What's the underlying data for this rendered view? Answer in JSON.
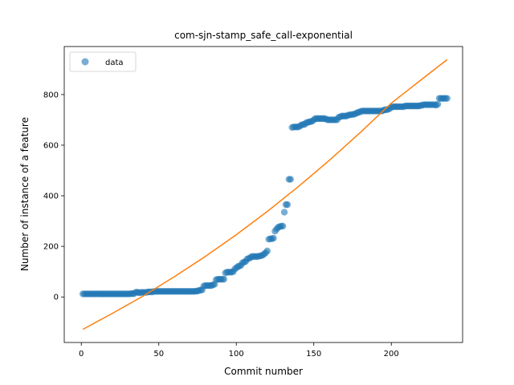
{
  "chart_data": {
    "type": "scatter",
    "title": "com-sjn-stamp_safe_call-exponential",
    "xlabel": "Commit number",
    "ylabel": "Number of instance of a feature",
    "xlim": [
      -11,
      246
    ],
    "ylim": [
      -180,
      990
    ],
    "xticks": [
      0,
      50,
      100,
      150,
      200
    ],
    "yticks": [
      0,
      200,
      400,
      600,
      800
    ],
    "grid": false,
    "legend_position": "top-left",
    "series": [
      {
        "name": "data",
        "kind": "points",
        "color": "#1f77b4",
        "points": [
          [
            1,
            12
          ],
          [
            2,
            12
          ],
          [
            3,
            12
          ],
          [
            4,
            12
          ],
          [
            5,
            12
          ],
          [
            6,
            12
          ],
          [
            7,
            12
          ],
          [
            8,
            12
          ],
          [
            9,
            12
          ],
          [
            10,
            12
          ],
          [
            11,
            12
          ],
          [
            12,
            12
          ],
          [
            13,
            12
          ],
          [
            14,
            12
          ],
          [
            15,
            12
          ],
          [
            16,
            12
          ],
          [
            17,
            12
          ],
          [
            18,
            12
          ],
          [
            19,
            12
          ],
          [
            20,
            12
          ],
          [
            21,
            12
          ],
          [
            22,
            12
          ],
          [
            23,
            12
          ],
          [
            24,
            12
          ],
          [
            25,
            12
          ],
          [
            26,
            12
          ],
          [
            27,
            12
          ],
          [
            28,
            12
          ],
          [
            29,
            12
          ],
          [
            30,
            12
          ],
          [
            31,
            12
          ],
          [
            32,
            13
          ],
          [
            33,
            13
          ],
          [
            34,
            13
          ],
          [
            35,
            18
          ],
          [
            36,
            19
          ],
          [
            37,
            17
          ],
          [
            38,
            17
          ],
          [
            39,
            18
          ],
          [
            40,
            18
          ],
          [
            41,
            18
          ],
          [
            42,
            18
          ],
          [
            43,
            20
          ],
          [
            44,
            20
          ],
          [
            45,
            20
          ],
          [
            46,
            20
          ],
          [
            47,
            22
          ],
          [
            48,
            22
          ],
          [
            49,
            22
          ],
          [
            50,
            22
          ],
          [
            51,
            22
          ],
          [
            52,
            22
          ],
          [
            53,
            22
          ],
          [
            54,
            22
          ],
          [
            55,
            22
          ],
          [
            56,
            22
          ],
          [
            57,
            22
          ],
          [
            58,
            22
          ],
          [
            59,
            22
          ],
          [
            60,
            22
          ],
          [
            61,
            22
          ],
          [
            62,
            22
          ],
          [
            63,
            22
          ],
          [
            64,
            22
          ],
          [
            65,
            22
          ],
          [
            66,
            22
          ],
          [
            67,
            22
          ],
          [
            68,
            22
          ],
          [
            69,
            22
          ],
          [
            70,
            22
          ],
          [
            71,
            22
          ],
          [
            72,
            22
          ],
          [
            73,
            22
          ],
          [
            74,
            23
          ],
          [
            75,
            23
          ],
          [
            76,
            26
          ],
          [
            77,
            27
          ],
          [
            78,
            28
          ],
          [
            79,
            43
          ],
          [
            80,
            45
          ],
          [
            81,
            45
          ],
          [
            82,
            45
          ],
          [
            83,
            45
          ],
          [
            84,
            45
          ],
          [
            85,
            48
          ],
          [
            86,
            50
          ],
          [
            87,
            68
          ],
          [
            88,
            70
          ],
          [
            89,
            70
          ],
          [
            90,
            70
          ],
          [
            91,
            70
          ],
          [
            92,
            70
          ],
          [
            93,
            95
          ],
          [
            94,
            98
          ],
          [
            95,
            98
          ],
          [
            96,
            98
          ],
          [
            97,
            98
          ],
          [
            98,
            100
          ],
          [
            99,
            110
          ],
          [
            100,
            115
          ],
          [
            101,
            120
          ],
          [
            102,
            122
          ],
          [
            103,
            125
          ],
          [
            104,
            135
          ],
          [
            105,
            138
          ],
          [
            106,
            140
          ],
          [
            107,
            150
          ],
          [
            108,
            152
          ],
          [
            109,
            155
          ],
          [
            110,
            160
          ],
          [
            111,
            160
          ],
          [
            112,
            160
          ],
          [
            113,
            160
          ],
          [
            114,
            160
          ],
          [
            115,
            162
          ],
          [
            116,
            163
          ],
          [
            117,
            165
          ],
          [
            118,
            170
          ],
          [
            119,
            175
          ],
          [
            120,
            182
          ],
          [
            121,
            228
          ],
          [
            122,
            230
          ],
          [
            123,
            230
          ],
          [
            124,
            232
          ],
          [
            125,
            260
          ],
          [
            126,
            268
          ],
          [
            127,
            275
          ],
          [
            128,
            278
          ],
          [
            129,
            280
          ],
          [
            130,
            280
          ],
          [
            131,
            335
          ],
          [
            132,
            365
          ],
          [
            133,
            365
          ],
          [
            134,
            465
          ],
          [
            135,
            465
          ],
          [
            136,
            670
          ],
          [
            137,
            672
          ],
          [
            138,
            672
          ],
          [
            139,
            672
          ],
          [
            140,
            672
          ],
          [
            141,
            675
          ],
          [
            142,
            680
          ],
          [
            143,
            682
          ],
          [
            144,
            682
          ],
          [
            145,
            688
          ],
          [
            146,
            690
          ],
          [
            147,
            692
          ],
          [
            148,
            693
          ],
          [
            149,
            695
          ],
          [
            150,
            700
          ],
          [
            151,
            705
          ],
          [
            152,
            705
          ],
          [
            153,
            705
          ],
          [
            154,
            705
          ],
          [
            155,
            705
          ],
          [
            156,
            705
          ],
          [
            157,
            705
          ],
          [
            158,
            703
          ],
          [
            159,
            700
          ],
          [
            160,
            700
          ],
          [
            161,
            700
          ],
          [
            162,
            700
          ],
          [
            163,
            700
          ],
          [
            164,
            700
          ],
          [
            165,
            700
          ],
          [
            166,
            710
          ],
          [
            167,
            712
          ],
          [
            168,
            715
          ],
          [
            169,
            715
          ],
          [
            170,
            715
          ],
          [
            171,
            715
          ],
          [
            172,
            718
          ],
          [
            173,
            720
          ],
          [
            174,
            720
          ],
          [
            175,
            722
          ],
          [
            176,
            722
          ],
          [
            177,
            725
          ],
          [
            178,
            728
          ],
          [
            179,
            730
          ],
          [
            180,
            732
          ],
          [
            181,
            735
          ],
          [
            182,
            735
          ],
          [
            183,
            735
          ],
          [
            184,
            735
          ],
          [
            185,
            735
          ],
          [
            186,
            735
          ],
          [
            187,
            735
          ],
          [
            188,
            735
          ],
          [
            189,
            735
          ],
          [
            190,
            735
          ],
          [
            191,
            735
          ],
          [
            192,
            735
          ],
          [
            193,
            735
          ],
          [
            194,
            735
          ],
          [
            195,
            738
          ],
          [
            196,
            740
          ],
          [
            197,
            740
          ],
          [
            198,
            742
          ],
          [
            199,
            745
          ],
          [
            200,
            750
          ],
          [
            201,
            752
          ],
          [
            202,
            752
          ],
          [
            203,
            752
          ],
          [
            204,
            752
          ],
          [
            205,
            752
          ],
          [
            206,
            752
          ],
          [
            207,
            752
          ],
          [
            208,
            752
          ],
          [
            209,
            755
          ],
          [
            210,
            755
          ],
          [
            211,
            755
          ],
          [
            212,
            755
          ],
          [
            213,
            755
          ],
          [
            214,
            755
          ],
          [
            215,
            755
          ],
          [
            216,
            755
          ],
          [
            217,
            755
          ],
          [
            218,
            755
          ],
          [
            219,
            757
          ],
          [
            220,
            758
          ],
          [
            221,
            760
          ],
          [
            222,
            760
          ],
          [
            223,
            760
          ],
          [
            224,
            760
          ],
          [
            225,
            760
          ],
          [
            226,
            760
          ],
          [
            227,
            760
          ],
          [
            228,
            760
          ],
          [
            229,
            758
          ],
          [
            230,
            762
          ],
          [
            231,
            785
          ],
          [
            232,
            785
          ],
          [
            233,
            785
          ],
          [
            234,
            785
          ],
          [
            235,
            785
          ],
          [
            236,
            785
          ]
        ]
      },
      {
        "name": "",
        "kind": "line",
        "color": "#ff7f0e",
        "points": [
          [
            1,
            -128
          ],
          [
            20,
            -65
          ],
          [
            40,
            4
          ],
          [
            60,
            80
          ],
          [
            80,
            160
          ],
          [
            100,
            246
          ],
          [
            120,
            338
          ],
          [
            140,
            436
          ],
          [
            160,
            540
          ],
          [
            180,
            650
          ],
          [
            200,
            766
          ],
          [
            220,
            862
          ],
          [
            236,
            938
          ]
        ]
      }
    ]
  }
}
